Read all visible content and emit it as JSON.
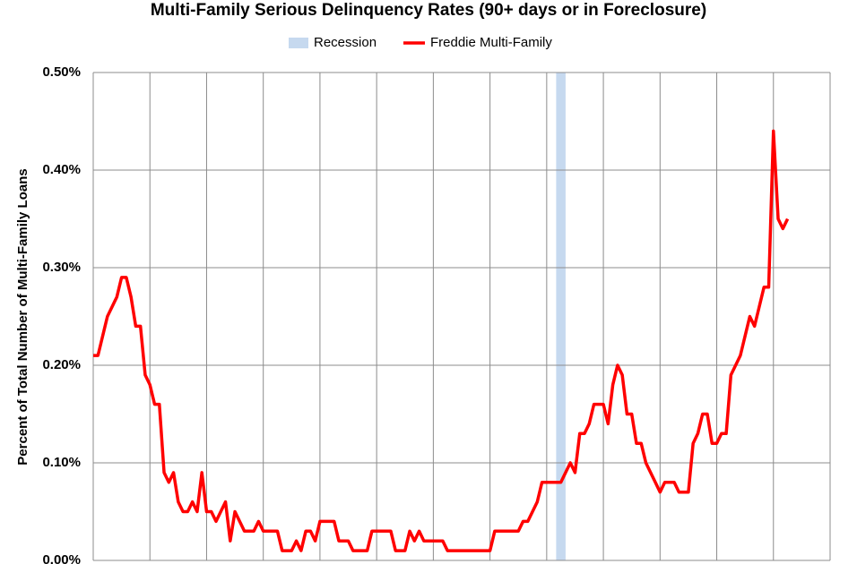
{
  "chart_data": {
    "type": "line",
    "title": "Multi-Family Serious Delinquency Rates (90+ days or in Foreclosure)",
    "y_label": "Percent of Total Number of Multi-Family Loans",
    "categories": [
      null,
      null,
      null,
      null,
      null,
      null,
      null,
      null,
      null,
      null,
      null,
      null,
      null,
      null,
      null,
      null,
      null,
      null,
      null,
      null,
      null,
      null,
      null,
      null,
      null,
      null,
      null,
      null,
      null,
      null,
      null,
      null,
      null,
      null,
      null,
      null,
      null,
      null,
      null,
      null,
      null,
      null,
      null,
      null,
      null,
      null,
      null,
      null,
      null,
      null,
      null,
      null,
      null,
      null,
      null,
      null,
      null,
      null,
      null,
      null,
      null,
      null,
      null,
      null,
      null,
      null,
      null,
      null,
      null,
      null,
      null,
      null,
      null,
      null,
      null,
      null,
      null,
      null,
      null,
      null,
      null,
      null,
      null,
      null,
      null,
      null,
      null,
      null,
      null,
      null,
      null,
      null,
      null,
      null,
      null,
      null,
      null,
      null,
      null,
      null,
      null,
      null,
      null,
      null,
      null,
      null,
      null,
      null,
      null,
      null,
      null,
      null,
      null,
      null,
      null,
      null,
      null,
      null,
      null,
      null,
      null,
      null,
      null,
      null,
      null,
      null,
      null,
      null,
      null,
      null,
      null,
      null,
      null,
      null,
      null,
      null,
      null,
      null,
      null,
      null,
      null,
      null,
      null,
      null,
      null,
      null,
      null,
      null
    ],
    "series": [
      {
        "name": "Freddie Multi-Family",
        "color": "#ff0000",
        "values": [
          0.21,
          0.21,
          0.23,
          0.25,
          0.26,
          0.27,
          0.29,
          0.29,
          0.27,
          0.24,
          0.24,
          0.19,
          0.18,
          0.16,
          0.16,
          0.09,
          0.08,
          0.09,
          0.06,
          0.05,
          0.05,
          0.06,
          0.05,
          0.09,
          0.05,
          0.05,
          0.04,
          0.05,
          0.06,
          0.02,
          0.05,
          0.04,
          0.03,
          0.03,
          0.03,
          0.04,
          0.03,
          0.03,
          0.03,
          0.03,
          0.01,
          0.01,
          0.01,
          0.02,
          0.01,
          0.03,
          0.03,
          0.02,
          0.04,
          0.04,
          0.04,
          0.04,
          0.02,
          0.02,
          0.02,
          0.01,
          0.01,
          0.01,
          0.01,
          0.03,
          0.03,
          0.03,
          0.03,
          0.03,
          0.01,
          0.01,
          0.01,
          0.03,
          0.02,
          0.03,
          0.02,
          0.02,
          0.02,
          0.02,
          0.02,
          0.01,
          0.01,
          0.01,
          0.01,
          0.01,
          0.01,
          0.01,
          0.01,
          0.01,
          0.01,
          0.03,
          0.03,
          0.03,
          0.03,
          0.03,
          0.03,
          0.04,
          0.04,
          0.05,
          0.06,
          0.08,
          0.08,
          0.08,
          0.08,
          0.08,
          0.09,
          0.1,
          0.09,
          0.13,
          0.13,
          0.14,
          0.16,
          0.16,
          0.16,
          0.14,
          0.18,
          0.2,
          0.19,
          0.15,
          0.15,
          0.12,
          0.12,
          0.1,
          0.09,
          0.08,
          0.07,
          0.08,
          0.08,
          0.08,
          0.07,
          0.07,
          0.07,
          0.12,
          0.13,
          0.15,
          0.15,
          0.12,
          0.12,
          0.13,
          0.13,
          0.19,
          0.2,
          0.21,
          0.23,
          0.25,
          0.24,
          0.26,
          0.28,
          0.28,
          0.44,
          0.35,
          0.34,
          0.35
        ]
      }
    ],
    "recession": {
      "name": "Recession",
      "color": "#c6d9ef",
      "start": 98,
      "end": 100
    },
    "ylim": [
      0,
      0.5
    ],
    "yticks": [
      {
        "value": 0,
        "label": "0.00%"
      },
      {
        "value": 0.1,
        "label": "0.10%"
      },
      {
        "value": 0.2,
        "label": "0.20%"
      },
      {
        "value": 0.3,
        "label": "0.30%"
      },
      {
        "value": 0.4,
        "label": "0.40%"
      },
      {
        "value": 0.5,
        "label": "0.50%"
      }
    ],
    "grid": true,
    "legend": "top"
  }
}
